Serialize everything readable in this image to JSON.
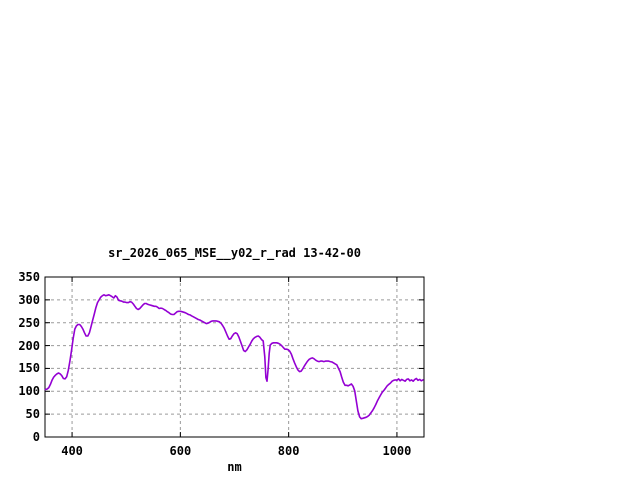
{
  "chart_data": {
    "type": "line",
    "title": "sr_2026_065_MSE__y02_r_rad 13-42-00",
    "xlabel": "nm",
    "ylabel": "",
    "xlim": [
      350,
      1050
    ],
    "ylim": [
      0,
      350
    ],
    "xticks": [
      400,
      600,
      800,
      1000
    ],
    "yticks": [
      0,
      50,
      100,
      150,
      200,
      250,
      300,
      350
    ],
    "grid": true,
    "legend_position": "none",
    "colors": {
      "line": "#9400d3",
      "grid": "#9a9a9a",
      "frame": "#000000",
      "background": "#ffffff",
      "text": "#000000"
    },
    "series": [
      {
        "name": "spectral-radiance-curve",
        "color": "#9400d3",
        "points": [
          [
            351,
            104
          ],
          [
            354,
            105
          ],
          [
            357,
            108
          ],
          [
            360,
            115
          ],
          [
            363,
            124
          ],
          [
            366,
            131
          ],
          [
            369,
            135
          ],
          [
            372,
            138
          ],
          [
            375,
            140
          ],
          [
            378,
            138
          ],
          [
            381,
            134
          ],
          [
            384,
            128
          ],
          [
            387,
            127
          ],
          [
            390,
            132
          ],
          [
            393,
            146
          ],
          [
            396,
            166
          ],
          [
            399,
            189
          ],
          [
            402,
            216
          ],
          [
            405,
            236
          ],
          [
            408,
            243
          ],
          [
            411,
            246
          ],
          [
            414,
            246
          ],
          [
            417,
            242
          ],
          [
            420,
            236
          ],
          [
            423,
            228
          ],
          [
            426,
            221
          ],
          [
            429,
            221
          ],
          [
            432,
            228
          ],
          [
            435,
            241
          ],
          [
            438,
            255
          ],
          [
            441,
            269
          ],
          [
            444,
            283
          ],
          [
            447,
            294
          ],
          [
            450,
            300
          ],
          [
            453,
            306
          ],
          [
            456,
            309
          ],
          [
            459,
            311
          ],
          [
            462,
            309
          ],
          [
            465,
            310
          ],
          [
            468,
            311
          ],
          [
            471,
            309
          ],
          [
            474,
            307
          ],
          [
            477,
            304
          ],
          [
            480,
            309
          ],
          [
            483,
            306
          ],
          [
            486,
            299
          ],
          [
            489,
            298
          ],
          [
            492,
            297
          ],
          [
            495,
            295
          ],
          [
            498,
            295
          ],
          [
            501,
            294
          ],
          [
            504,
            294
          ],
          [
            507,
            296
          ],
          [
            510,
            295
          ],
          [
            513,
            291
          ],
          [
            516,
            286
          ],
          [
            519,
            281
          ],
          [
            522,
            279
          ],
          [
            525,
            281
          ],
          [
            528,
            285
          ],
          [
            531,
            289
          ],
          [
            534,
            292
          ],
          [
            537,
            292
          ],
          [
            540,
            290
          ],
          [
            543,
            289
          ],
          [
            546,
            288
          ],
          [
            549,
            287
          ],
          [
            552,
            286
          ],
          [
            555,
            286
          ],
          [
            558,
            284
          ],
          [
            561,
            281
          ],
          [
            564,
            282
          ],
          [
            567,
            281
          ],
          [
            570,
            279
          ],
          [
            573,
            277
          ],
          [
            576,
            274
          ],
          [
            579,
            272
          ],
          [
            582,
            269
          ],
          [
            585,
            268
          ],
          [
            588,
            268
          ],
          [
            591,
            271
          ],
          [
            594,
            274
          ],
          [
            597,
            275
          ],
          [
            600,
            275
          ],
          [
            603,
            274
          ],
          [
            606,
            273
          ],
          [
            609,
            272
          ],
          [
            612,
            270
          ],
          [
            615,
            268
          ],
          [
            618,
            267
          ],
          [
            621,
            265
          ],
          [
            624,
            263
          ],
          [
            627,
            261
          ],
          [
            630,
            259
          ],
          [
            633,
            257
          ],
          [
            636,
            256
          ],
          [
            639,
            254
          ],
          [
            642,
            252
          ],
          [
            645,
            250
          ],
          [
            648,
            248
          ],
          [
            651,
            249
          ],
          [
            654,
            251
          ],
          [
            657,
            253
          ],
          [
            660,
            254
          ],
          [
            663,
            254
          ],
          [
            666,
            254
          ],
          [
            669,
            253
          ],
          [
            672,
            252
          ],
          [
            675,
            249
          ],
          [
            678,
            244
          ],
          [
            681,
            238
          ],
          [
            684,
            230
          ],
          [
            687,
            221
          ],
          [
            690,
            214
          ],
          [
            693,
            215
          ],
          [
            696,
            221
          ],
          [
            699,
            226
          ],
          [
            702,
            228
          ],
          [
            705,
            226
          ],
          [
            708,
            219
          ],
          [
            711,
            209
          ],
          [
            714,
            199
          ],
          [
            717,
            189
          ],
          [
            720,
            187
          ],
          [
            723,
            191
          ],
          [
            726,
            197
          ],
          [
            729,
            203
          ],
          [
            732,
            210
          ],
          [
            735,
            215
          ],
          [
            738,
            218
          ],
          [
            741,
            220
          ],
          [
            744,
            221
          ],
          [
            747,
            218
          ],
          [
            750,
            213
          ],
          [
            753,
            210
          ],
          [
            756,
            175
          ],
          [
            758,
            130
          ],
          [
            760,
            122
          ],
          [
            762,
            148
          ],
          [
            764,
            183
          ],
          [
            766,
            201
          ],
          [
            769,
            205
          ],
          [
            772,
            206
          ],
          [
            775,
            206
          ],
          [
            778,
            206
          ],
          [
            781,
            205
          ],
          [
            784,
            203
          ],
          [
            787,
            200
          ],
          [
            790,
            196
          ],
          [
            793,
            192
          ],
          [
            796,
            192
          ],
          [
            799,
            191
          ],
          [
            802,
            188
          ],
          [
            805,
            181
          ],
          [
            808,
            171
          ],
          [
            811,
            162
          ],
          [
            814,
            154
          ],
          [
            817,
            147
          ],
          [
            820,
            143
          ],
          [
            823,
            144
          ],
          [
            826,
            149
          ],
          [
            829,
            155
          ],
          [
            832,
            161
          ],
          [
            835,
            166
          ],
          [
            838,
            170
          ],
          [
            841,
            172
          ],
          [
            844,
            173
          ],
          [
            847,
            171
          ],
          [
            850,
            168
          ],
          [
            853,
            166
          ],
          [
            856,
            165
          ],
          [
            859,
            166
          ],
          [
            862,
            166
          ],
          [
            865,
            165
          ],
          [
            868,
            166
          ],
          [
            871,
            166
          ],
          [
            874,
            166
          ],
          [
            877,
            165
          ],
          [
            880,
            164
          ],
          [
            883,
            162
          ],
          [
            886,
            160
          ],
          [
            889,
            158
          ],
          [
            892,
            150
          ],
          [
            895,
            143
          ],
          [
            898,
            131
          ],
          [
            901,
            120
          ],
          [
            904,
            113
          ],
          [
            907,
            113
          ],
          [
            910,
            112
          ],
          [
            913,
            114
          ],
          [
            916,
            116
          ],
          [
            919,
            111
          ],
          [
            922,
            101
          ],
          [
            925,
            79
          ],
          [
            928,
            57
          ],
          [
            931,
            44
          ],
          [
            934,
            40
          ],
          [
            937,
            41
          ],
          [
            940,
            42
          ],
          [
            943,
            43
          ],
          [
            946,
            45
          ],
          [
            949,
            48
          ],
          [
            952,
            53
          ],
          [
            955,
            58
          ],
          [
            958,
            64
          ],
          [
            961,
            71
          ],
          [
            964,
            79
          ],
          [
            967,
            86
          ],
          [
            970,
            92
          ],
          [
            973,
            98
          ],
          [
            976,
            102
          ],
          [
            979,
            107
          ],
          [
            982,
            112
          ],
          [
            985,
            115
          ],
          [
            988,
            118
          ],
          [
            991,
            122
          ],
          [
            994,
            124
          ],
          [
            997,
            125
          ],
          [
            1000,
            124
          ],
          [
            1003,
            127
          ],
          [
            1006,
            123
          ],
          [
            1009,
            126
          ],
          [
            1012,
            124
          ],
          [
            1015,
            122
          ],
          [
            1018,
            126
          ],
          [
            1021,
            127
          ],
          [
            1024,
            123
          ],
          [
            1027,
            125
          ],
          [
            1030,
            122
          ],
          [
            1033,
            126
          ],
          [
            1036,
            128
          ],
          [
            1039,
            124
          ],
          [
            1042,
            126
          ],
          [
            1045,
            123
          ],
          [
            1048,
            125
          ]
        ]
      }
    ]
  }
}
